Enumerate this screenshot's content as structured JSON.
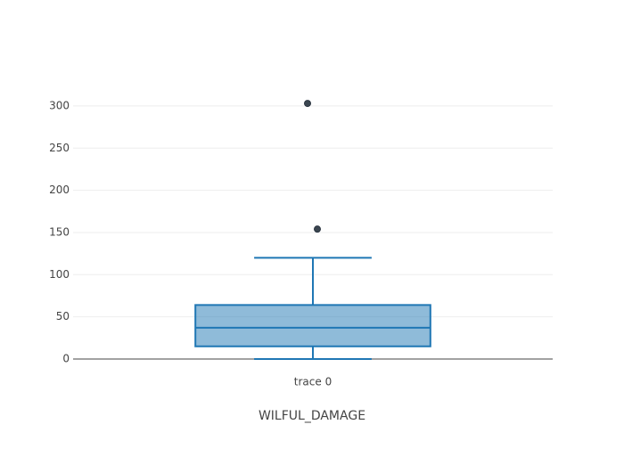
{
  "chart_data": {
    "type": "box",
    "x_label": "WILFUL_DAMAGE",
    "categories": [
      "trace 0"
    ],
    "boxes": [
      {
        "min": 0,
        "q1": 15,
        "median": 37,
        "q3": 64,
        "max": 120,
        "outliers": [
          303,
          154
        ]
      }
    ],
    "color": "#1f77b4",
    "fill": "rgba(31,119,180,0.5)",
    "outlier_color": "#3b4650",
    "ylim": [
      -18,
      320
    ],
    "yticks": [
      0,
      50,
      100,
      150,
      200,
      250,
      300
    ],
    "grid": true
  }
}
